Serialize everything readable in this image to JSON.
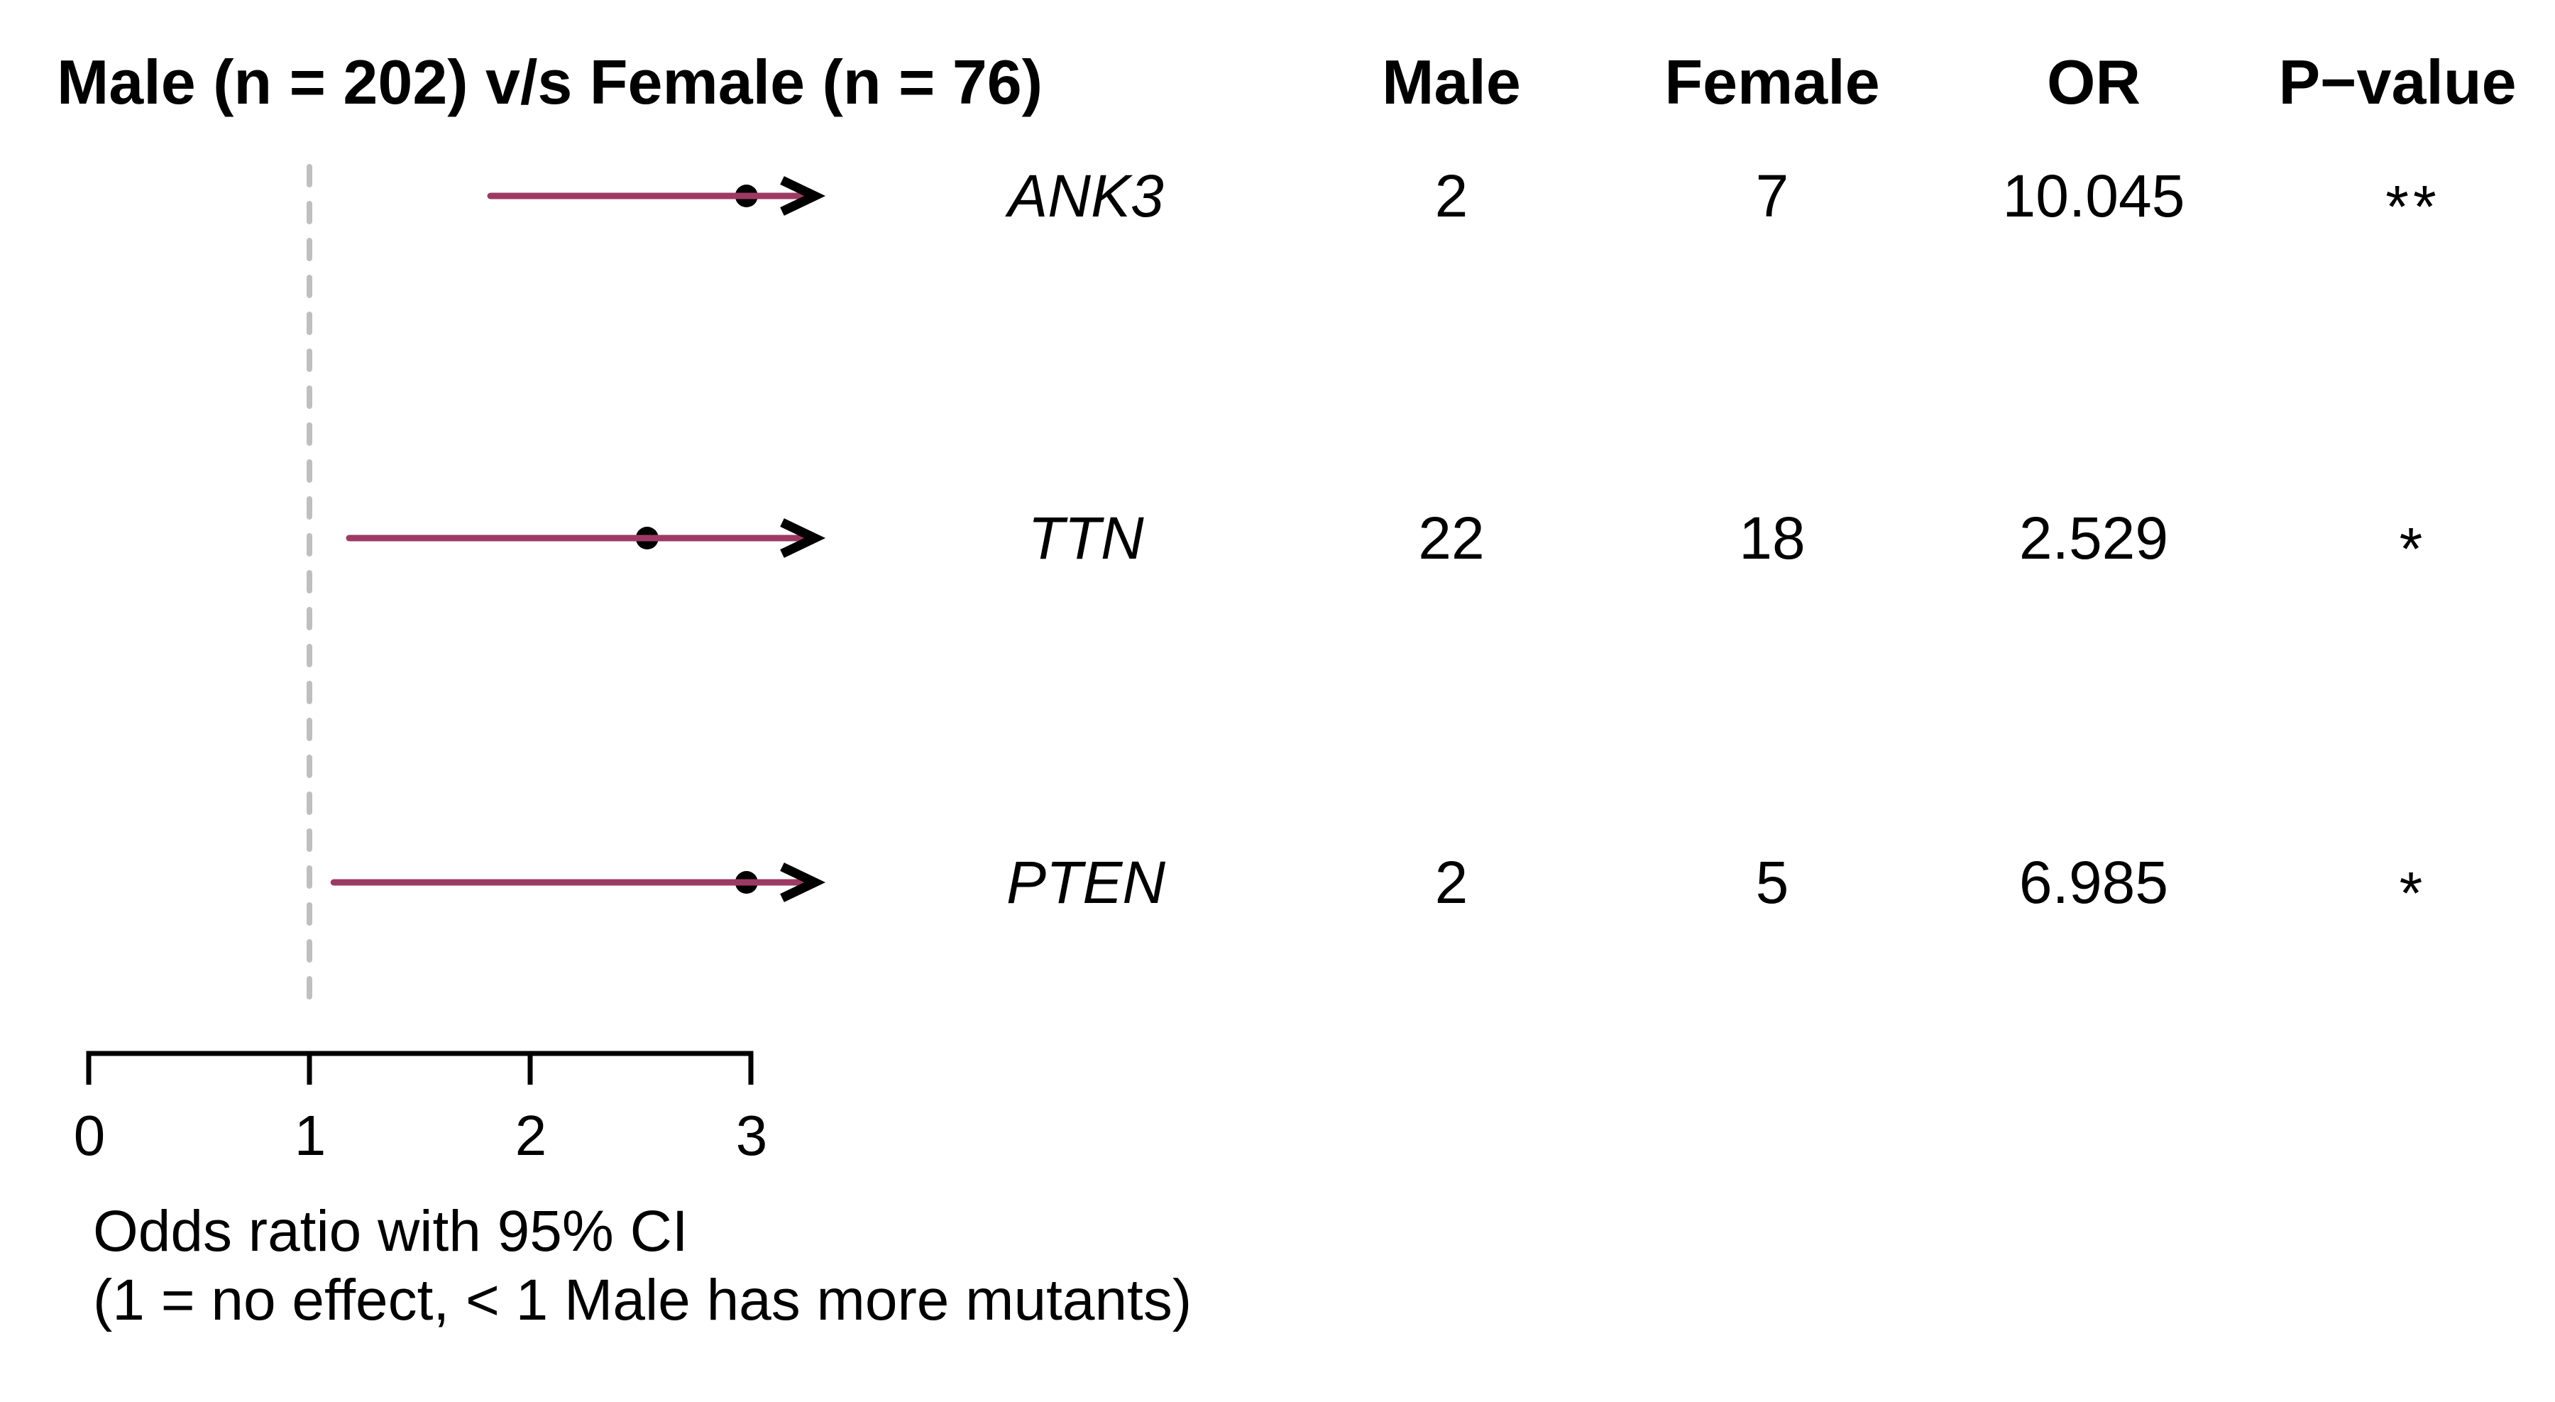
{
  "title": "Male (n = 202) v/s Female (n = 76)",
  "table_headers": {
    "male": "Male",
    "female": "Female",
    "or": "OR",
    "pvalue": "P−value"
  },
  "caption": {
    "line1": "Odds ratio with 95% CI",
    "line2": "(1 = no effect, < 1 Male has more mutants)"
  },
  "chart_data": {
    "type": "forest_plot",
    "title": "Male (n = 202) v/s Female (n = 76)",
    "xlabel": "Odds ratio with 95% CI (1 = no effect, < 1 Male has more mutants)",
    "x_ticks": [
      0,
      1,
      2,
      3
    ],
    "xlim": [
      0,
      3.3
    ],
    "reference_line": 1,
    "legend_position": "none",
    "grid": false,
    "rows": [
      {
        "gene": "ANK3",
        "male_count": 2,
        "female_count": 7,
        "odds_ratio": "10.045",
        "significance": "**",
        "ci_low": 1.82,
        "ci_upper_offscale": true,
        "dot_position": 2.98
      },
      {
        "gene": "TTN",
        "male_count": 22,
        "female_count": 18,
        "odds_ratio": "2.529",
        "significance": "*",
        "ci_low": 1.18,
        "ci_upper_offscale": true,
        "dot_position": 2.53
      },
      {
        "gene": "PTEN",
        "male_count": 2,
        "female_count": 5,
        "odds_ratio": "6.985",
        "significance": "*",
        "ci_low": 1.11,
        "ci_upper_offscale": true,
        "dot_position": 2.98
      }
    ],
    "colors": {
      "ci_line": "#9d3a63",
      "dot": "#000000",
      "arrow": "#000000",
      "reference_line": "#bfbfbf",
      "axis": "#000000",
      "text": "#000000"
    }
  }
}
